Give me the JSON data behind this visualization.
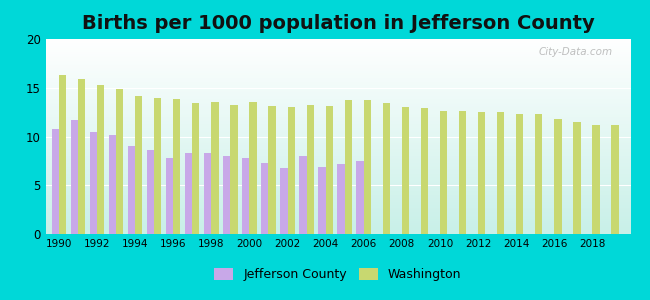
{
  "title": "Births per 1000 population in Jefferson County",
  "background_color": "#00d8d8",
  "plot_bg_top": "#ffffff",
  "plot_bg_bottom": "#c8f0e8",
  "jefferson_county": {
    "years": [
      1990,
      1991,
      1992,
      1993,
      1994,
      1995,
      1996,
      1997,
      1998,
      1999,
      2000,
      2001,
      2002,
      2003,
      2004,
      2005,
      2006
    ],
    "values": [
      10.8,
      11.7,
      10.5,
      10.2,
      9.0,
      8.6,
      7.8,
      8.3,
      8.3,
      8.0,
      7.8,
      7.3,
      6.8,
      8.0,
      6.9,
      7.2,
      7.5
    ]
  },
  "washington": {
    "years": [
      1990,
      1991,
      1992,
      1993,
      1994,
      1995,
      1996,
      1997,
      1998,
      1999,
      2000,
      2001,
      2002,
      2003,
      2004,
      2005,
      2006,
      2007,
      2008,
      2009,
      2010,
      2011,
      2012,
      2013,
      2014,
      2015,
      2016,
      2017,
      2018,
      2019
    ],
    "values": [
      16.3,
      15.9,
      15.3,
      14.9,
      14.2,
      13.9,
      13.8,
      13.4,
      13.5,
      13.2,
      13.5,
      13.1,
      13.0,
      13.2,
      13.1,
      13.7,
      13.7,
      13.4,
      13.0,
      12.9,
      12.6,
      12.6,
      12.5,
      12.5,
      12.3,
      12.3,
      11.8,
      11.5,
      11.2,
      11.2
    ]
  },
  "jefferson_color": "#c8a8e8",
  "washington_color": "#c8d870",
  "ylim": [
    0,
    20
  ],
  "yticks": [
    0,
    5,
    10,
    15,
    20
  ],
  "title_fontsize": 14,
  "legend_labels": [
    "Jefferson County",
    "Washington"
  ],
  "watermark": "City-Data.com"
}
